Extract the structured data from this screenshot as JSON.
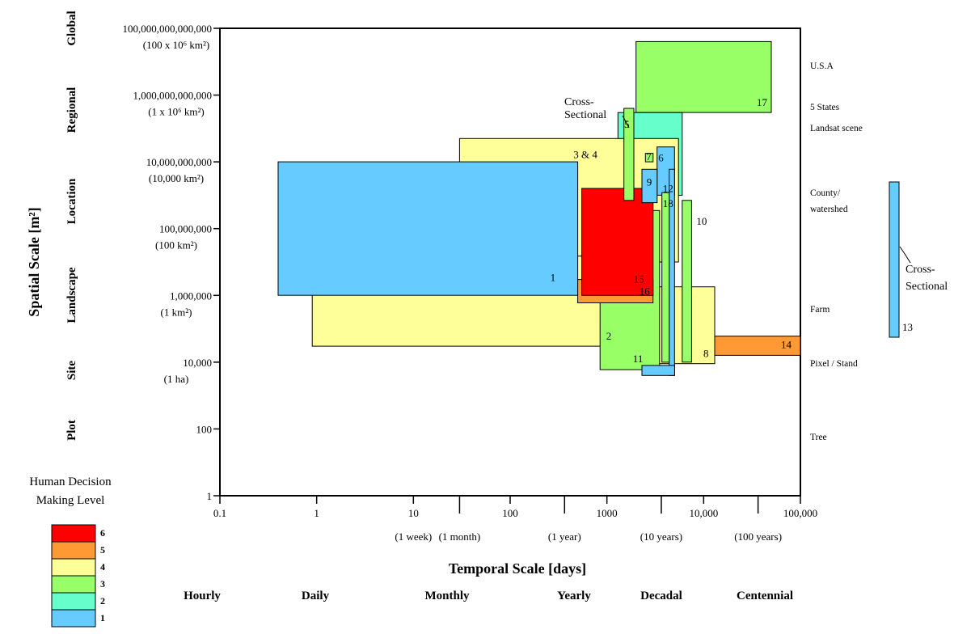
{
  "chart_data": {
    "type": "scale-rectangles",
    "x_axis": {
      "title": "Temporal Scale [days]",
      "scale": "log10",
      "range": [
        0.1,
        100000
      ],
      "ticks": [
        {
          "value": 0.1,
          "label": "0.1",
          "sub": ""
        },
        {
          "value": 1,
          "label": "1",
          "sub": ""
        },
        {
          "value": 10,
          "label": "10",
          "sub": "(1 week)"
        },
        {
          "value": 30,
          "label": "",
          "sub": "(1 month)"
        },
        {
          "value": 100,
          "label": "100",
          "sub": ""
        },
        {
          "value": 365,
          "label": "",
          "sub": "(1 year)"
        },
        {
          "value": 1000,
          "label": "1000",
          "sub": ""
        },
        {
          "value": 3650,
          "label": "",
          "sub": "(10 years)"
        },
        {
          "value": 10000,
          "label": "10,000",
          "sub": ""
        },
        {
          "value": 36500,
          "label": "",
          "sub": "(100 years)"
        },
        {
          "value": 100000,
          "label": "100,000",
          "sub": ""
        }
      ],
      "bands": [
        {
          "label": "Hourly",
          "value": 0.1
        },
        {
          "label": "Daily",
          "value": 1
        },
        {
          "label": "Monthly",
          "value": 30
        },
        {
          "label": "Yearly",
          "value": 365
        },
        {
          "label": "Decadal",
          "value": 3650
        },
        {
          "label": "Centennial",
          "value": 36500
        }
      ]
    },
    "y_axis": {
      "title": "Spatial Scale [m²]",
      "scale": "log10",
      "range": [
        1,
        100000000000000.0
      ],
      "ticks": [
        {
          "value": 100000000000000.0,
          "label": "100,000,000,000,000",
          "sub": "(100 x 10⁶ km²)"
        },
        {
          "value": 1000000000000.0,
          "label": "1,000,000,000,000",
          "sub": "(1 x 10⁶ km²)"
        },
        {
          "value": 10000000000.0,
          "label": "10,000,000,000",
          "sub": "(10,000 km²)"
        },
        {
          "value": 100000000.0,
          "label": "100,000,000",
          "sub": "(100 km²)"
        },
        {
          "value": 1000000.0,
          "label": "1,000,000",
          "sub": "(1 km²)"
        },
        {
          "value": 10000.0,
          "label": "10,000",
          "sub": "(1 ha)"
        },
        {
          "value": 100,
          "label": "100",
          "sub": ""
        },
        {
          "value": 1,
          "label": "1",
          "sub": ""
        }
      ],
      "bands": [
        {
          "label": "Global",
          "value": 100000000000000.0
        },
        {
          "label": "Regional",
          "value": 1000000000000.0
        },
        {
          "label": "Location",
          "value": 1000000000.0
        },
        {
          "label": "Landscape",
          "value": 1000000.0
        },
        {
          "label": "Site",
          "value": 10000.0
        },
        {
          "label": "Plot",
          "value": 100
        }
      ]
    },
    "right_labels": [
      {
        "label": "U.S.A",
        "value": 13000000000000.0
      },
      {
        "label": "5 States",
        "value": 1000000000000.0
      },
      {
        "label": "Landsat scene",
        "value": 300000000000.0
      },
      {
        "label": "County/",
        "value": 250000000.0
      },
      {
        "label": "watershed",
        "value": 110000000.0
      },
      {
        "label": "Farm",
        "value": 300000.0
      },
      {
        "label": "Pixel / Stand",
        "value": 10000.0
      },
      {
        "label": "Tree",
        "value": 60
      }
    ],
    "legend": {
      "title_line1": "Human Decision",
      "title_line2": "Making Level",
      "levels": [
        {
          "level": 6,
          "label": "6",
          "color": "#ff0000"
        },
        {
          "level": 5,
          "label": "5",
          "color": "#ff9933"
        },
        {
          "level": 4,
          "label": "4",
          "color": "#ffff99"
        },
        {
          "level": 3,
          "label": "3",
          "color": "#99ff66"
        },
        {
          "level": 2,
          "label": "2",
          "color": "#66ffcc"
        },
        {
          "level": 1,
          "label": "1",
          "color": "#66ccff"
        }
      ]
    },
    "rects": [
      {
        "id": "17",
        "label": "17",
        "level": 3,
        "x0": 2000,
        "x1": 50000,
        "y0": 300000000000.0,
        "y1": 40000000000000.0
      },
      {
        "id": "12",
        "label": "12",
        "level": 2,
        "x0": 1300,
        "x1": 6000,
        "y0": 1000000000.0,
        "y1": 300000000000.0
      },
      {
        "id": "3-4",
        "label": "3 & 4",
        "level": 4,
        "x0": 30,
        "x1": 5500,
        "y0": 10000000.0,
        "y1": 50000000000.0
      },
      {
        "id": "2",
        "label": "2",
        "level": 4,
        "x0": 0.9,
        "x1": 1500,
        "y0": 30000.0,
        "y1": 15000000.0
      },
      {
        "id": "8",
        "label": "8",
        "level": 4,
        "x0": 1000,
        "x1": 13000,
        "y0": 9000,
        "y1": 1800000.0
      },
      {
        "id": "14",
        "label": "14",
        "level": 5,
        "x0": 13000,
        "x1": 100000,
        "y0": 16000.0,
        "y1": 60000.0
      },
      {
        "id": "11",
        "label": "11",
        "level": 3,
        "x0": 850,
        "x1": 3500,
        "y0": 6000,
        "y1": 350000000.0
      },
      {
        "id": "1",
        "label": "1",
        "level": 1,
        "x0": 0.4,
        "x1": 500,
        "y0": 1000000.0,
        "y1": 10000000000.0
      },
      {
        "id": "16",
        "label": "16",
        "level": 5,
        "x0": 500,
        "x1": 3000,
        "y0": 600000.0,
        "y1": 3000000.0
      },
      {
        "id": "15",
        "label": "15",
        "level": 6,
        "x0": 550,
        "x1": 3000,
        "y0": 1000000.0,
        "y1": 1600000000.0
      },
      {
        "id": "5",
        "label": "5",
        "level": 3,
        "x0": 1500,
        "x1": 1900,
        "y0": 700000000.0,
        "y1": 400000000000.0
      },
      {
        "id": "7",
        "label": "7",
        "level": 3,
        "x0": 2500,
        "x1": 3000,
        "y0": 10000000000.0,
        "y1": 18000000000.0
      },
      {
        "id": "6",
        "label": "6",
        "level": 1,
        "x0": 3300,
        "x1": 5000,
        "y0": 1000000000.0,
        "y1": 28000000000.0
      },
      {
        "id": "9",
        "label": "9",
        "level": 1,
        "x0": 2300,
        "x1": 3300,
        "y0": 600000000.0,
        "y1": 6000000000.0
      },
      {
        "id": "9b",
        "label": "",
        "level": 1,
        "x0": 4400,
        "x1": 5000,
        "y0": 4000,
        "y1": 6000000000.0
      },
      {
        "id": "9c",
        "label": "",
        "level": 1,
        "x0": 2300,
        "x1": 5000,
        "y0": 4000,
        "y1": 8000
      },
      {
        "id": "18",
        "label": "18",
        "level": 3,
        "x0": 3700,
        "x1": 4400,
        "y0": 10000.0,
        "y1": 1200000000.0
      },
      {
        "id": "10",
        "label": "10",
        "level": 3,
        "x0": 6000,
        "x1": 7500,
        "y0": 10000.0,
        "y1": 700000000.0
      },
      {
        "id": "13",
        "label": "13",
        "level": 1,
        "x0": 0,
        "x1": 0,
        "y0": 0,
        "y1": 0,
        "standalone": true
      }
    ],
    "annotations": [
      {
        "id": "cross-sectional-top",
        "line1": "Cross-",
        "line2": "Sectional"
      },
      {
        "id": "cross-sectional-right",
        "line1": "Cross-",
        "line2": "Sectional"
      }
    ]
  }
}
